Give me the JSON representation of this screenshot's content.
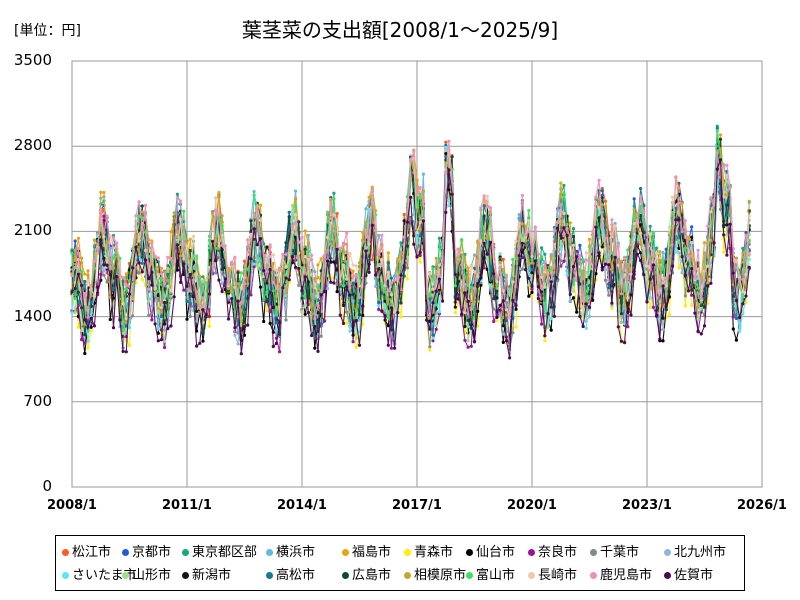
{
  "chart_data": {
    "type": "line",
    "title": "葉茎菜の支出額[2008/1～2025/9]",
    "unit_label": "[単位：円]",
    "xlabel": "",
    "ylabel": "",
    "x_range": [
      2008.0,
      2026.0
    ],
    "ylim": [
      0,
      3500
    ],
    "y_ticks": [
      "0",
      "700",
      "1400",
      "2100",
      "2800",
      "3500"
    ],
    "x_ticks": [
      "2008/1",
      "2011/1",
      "2014/1",
      "2017/1",
      "2020/1",
      "2023/1",
      "2026/1"
    ],
    "grid": true,
    "legend_position": "bottom",
    "series": [
      {
        "name": "松江市",
        "color": "#ff5a1f",
        "values": []
      },
      {
        "name": "京都市",
        "color": "#1f5bd6",
        "values": []
      },
      {
        "name": "東京都区部",
        "color": "#16a87a",
        "values": []
      },
      {
        "name": "横浜市",
        "color": "#5fb8e8",
        "values": []
      },
      {
        "name": "福島市",
        "color": "#f0a20c",
        "values": []
      },
      {
        "name": "青森市",
        "color": "#ffee00",
        "values": []
      },
      {
        "name": "仙台市",
        "color": "#000000",
        "values": []
      },
      {
        "name": "奈良市",
        "color": "#9a139a",
        "values": []
      },
      {
        "name": "千葉市",
        "color": "#7f8a92",
        "values": []
      },
      {
        "name": "北九州市",
        "color": "#8eb8d8",
        "values": []
      },
      {
        "name": "さいたま市",
        "color": "#5ee6f4",
        "values": []
      },
      {
        "name": "山形市",
        "color": "#9ee08a",
        "values": []
      },
      {
        "name": "新潟市",
        "color": "#141414",
        "values": []
      },
      {
        "name": "高松市",
        "color": "#137a92",
        "values": []
      },
      {
        "name": "広島市",
        "color": "#0e4a30",
        "values": []
      },
      {
        "name": "相模原市",
        "color": "#c8a432",
        "values": []
      },
      {
        "name": "富山市",
        "color": "#3ee060",
        "values": []
      },
      {
        "name": "長崎市",
        "color": "#f0c8a8",
        "values": []
      },
      {
        "name": "鹿児島市",
        "color": "#f08ec0",
        "values": []
      },
      {
        "name": "佐賀市",
        "color": "#4a0a52",
        "values": []
      }
    ]
  }
}
